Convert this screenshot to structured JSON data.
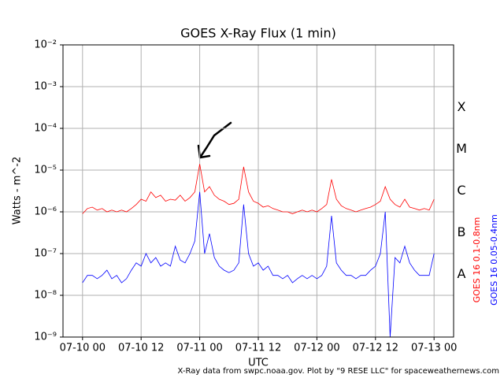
{
  "chart_data": {
    "type": "line",
    "title": "GOES X-Ray Flux (1 min)",
    "x_label": "UTC",
    "y_label": "Watts - m^-2",
    "footer": "X-Ray data from swpc.noaa.gov. Plot by \"9 RESE LLC\" for spaceweathernews.com",
    "log_y": true,
    "grid": true,
    "xlim": [
      "07-09 20",
      "07-13 04"
    ],
    "xticks": [
      "07-10 00",
      "07-10 12",
      "07-11 00",
      "07-11 12",
      "07-12 00",
      "07-12 12",
      "07-13 00"
    ],
    "ylim": [
      1e-09,
      0.01
    ],
    "yticks": [
      {
        "value": 1e-09,
        "label": "10⁻⁹"
      },
      {
        "value": 1e-08,
        "label": "10⁻⁸"
      },
      {
        "value": 1e-07,
        "label": "10⁻⁷"
      },
      {
        "value": 1e-06,
        "label": "10⁻⁶"
      },
      {
        "value": 1e-05,
        "label": "10⁻⁵"
      },
      {
        "value": 0.0001,
        "label": "10⁻⁴"
      },
      {
        "value": 0.001,
        "label": "10⁻³"
      },
      {
        "value": 0.01,
        "label": "10⁻²"
      }
    ],
    "flare_classes": [
      "X",
      "M",
      "C",
      "B",
      "A"
    ],
    "x": [
      "07-10 00",
      "07-10 01",
      "07-10 02",
      "07-10 03",
      "07-10 04",
      "07-10 05",
      "07-10 06",
      "07-10 07",
      "07-10 08",
      "07-10 09",
      "07-10 10",
      "07-10 11",
      "07-10 12",
      "07-10 13",
      "07-10 14",
      "07-10 15",
      "07-10 16",
      "07-10 17",
      "07-10 18",
      "07-10 19",
      "07-10 20",
      "07-10 21",
      "07-10 22",
      "07-10 23",
      "07-11 00",
      "07-11 01",
      "07-11 02",
      "07-11 03",
      "07-11 04",
      "07-11 05",
      "07-11 06",
      "07-11 07",
      "07-11 08",
      "07-11 09",
      "07-11 10",
      "07-11 11",
      "07-11 12",
      "07-11 13",
      "07-11 14",
      "07-11 15",
      "07-11 16",
      "07-11 17",
      "07-11 18",
      "07-11 19",
      "07-11 20",
      "07-11 21",
      "07-11 22",
      "07-11 23",
      "07-12 00",
      "07-12 01",
      "07-12 02",
      "07-12 03",
      "07-12 04",
      "07-12 05",
      "07-12 06",
      "07-12 07",
      "07-12 08",
      "07-12 09",
      "07-12 10",
      "07-12 11",
      "07-12 12",
      "07-12 13",
      "07-12 14",
      "07-12 15",
      "07-12 16",
      "07-12 17",
      "07-12 18",
      "07-12 19",
      "07-12 20",
      "07-12 21",
      "07-12 22",
      "07-12 23",
      "07-13 00"
    ],
    "series": [
      {
        "name": "GOES 16 0.1-0.8nm",
        "color": "#ff0000",
        "values": [
          9e-07,
          1.2e-06,
          1.3e-06,
          1.1e-06,
          1.2e-06,
          1e-06,
          1.1e-06,
          1e-06,
          1.1e-06,
          1e-06,
          1.2e-06,
          1.5e-06,
          2e-06,
          1.8e-06,
          3e-06,
          2.2e-06,
          2.5e-06,
          1.8e-06,
          2e-06,
          1.9e-06,
          2.5e-06,
          1.8e-06,
          2.2e-06,
          3e-06,
          1.4e-05,
          3e-06,
          4e-06,
          2.5e-06,
          2e-06,
          1.8e-06,
          1.5e-06,
          1.6e-06,
          2e-06,
          1.2e-05,
          3e-06,
          1.8e-06,
          1.6e-06,
          1.3e-06,
          1.4e-06,
          1.2e-06,
          1.1e-06,
          1e-06,
          1e-06,
          9e-07,
          1e-06,
          1.1e-06,
          1e-06,
          1.1e-06,
          1e-06,
          1.2e-06,
          1.5e-06,
          6e-06,
          2e-06,
          1.4e-06,
          1.2e-06,
          1.1e-06,
          1e-06,
          1.1e-06,
          1.2e-06,
          1.3e-06,
          1.5e-06,
          1.8e-06,
          4e-06,
          2e-06,
          1.5e-06,
          1.3e-06,
          2e-06,
          1.3e-06,
          1.2e-06,
          1.1e-06,
          1.2e-06,
          1.1e-06,
          2e-06
        ]
      },
      {
        "name": "GOES 16 0.05-0.4nm",
        "color": "#0000ff",
        "values": [
          2e-08,
          3e-08,
          3e-08,
          2.5e-08,
          3e-08,
          4e-08,
          2.5e-08,
          3e-08,
          2e-08,
          2.5e-08,
          4e-08,
          6e-08,
          5e-08,
          1e-07,
          6e-08,
          8e-08,
          5e-08,
          6e-08,
          5e-08,
          1.5e-07,
          7e-08,
          6e-08,
          1e-07,
          2e-07,
          3e-06,
          1e-07,
          3e-07,
          8e-08,
          5e-08,
          4e-08,
          3.5e-08,
          4e-08,
          6e-08,
          1.5e-06,
          1e-07,
          5e-08,
          6e-08,
          4e-08,
          5e-08,
          3e-08,
          3e-08,
          2.5e-08,
          3e-08,
          2e-08,
          2.5e-08,
          3e-08,
          2.5e-08,
          3e-08,
          2.5e-08,
          3e-08,
          5e-08,
          8e-07,
          6e-08,
          4e-08,
          3e-08,
          3e-08,
          2.5e-08,
          3e-08,
          3e-08,
          4e-08,
          5e-08,
          1e-07,
          1e-06,
          1e-09,
          8e-08,
          6e-08,
          1.5e-07,
          6e-08,
          4e-08,
          3e-08,
          3e-08,
          3e-08,
          1e-07
        ]
      }
    ]
  }
}
